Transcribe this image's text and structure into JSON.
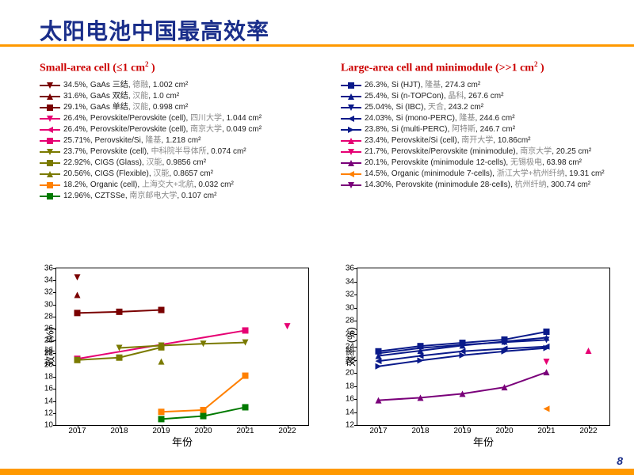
{
  "title": "太阳电池中国最高效率",
  "page_number": "8",
  "colors": {
    "title": "#1a2e8a",
    "rule": "#ff9900",
    "section_header": "#cc0000"
  },
  "panels": {
    "left": {
      "section_title_html": "Small-area cell (≤1 cm<sup>2</sup> )",
      "chart": {
        "ylabel": "效率 (%)",
        "xlabel": "年份",
        "ylim": [
          10,
          36
        ],
        "ytick_step": 2,
        "xlim": [
          2016.5,
          2022.5
        ],
        "xticks": [
          2017,
          2018,
          2019,
          2020,
          2021,
          2022
        ]
      },
      "series": [
        {
          "color": "#7a0000",
          "marker": "tri-down",
          "label": "34.5%, GaAs 三结, ",
          "grey": "德融",
          "tail": ", 1.002 cm²",
          "pts": [
            [
              2017,
              34.5
            ]
          ]
        },
        {
          "color": "#7a0000",
          "marker": "tri-up",
          "label": "31.6%, GaAs 双结, ",
          "grey": "汉能",
          "tail": ", 1.0 cm²",
          "pts": [
            [
              2017,
              31.6
            ]
          ]
        },
        {
          "color": "#7a0000",
          "marker": "square",
          "label": "29.1%, GaAs 单结, ",
          "grey": "汉能",
          "tail": ", 0.998 cm²",
          "pts": [
            [
              2017,
              28.6
            ],
            [
              2018,
              28.8
            ],
            [
              2019,
              29.1
            ]
          ]
        },
        {
          "color": "#e60073",
          "marker": "tri-down",
          "label": "26.4%, Perovskite/Perovskite (cell), ",
          "grey": "四川大学",
          "tail": ", 1.044 cm²",
          "pts": [
            [
              2022,
              26.4
            ]
          ]
        },
        {
          "color": "#e60073",
          "marker": "tri-left",
          "label": "26.4%, Perovskite/Perovskite (cell), ",
          "grey": "南京大学",
          "tail": ", 0.049 cm²",
          "pts": []
        },
        {
          "color": "#e60073",
          "marker": "square",
          "label": "25.71%, Perovskite/Si, ",
          "grey": "隆基",
          "tail": ", 1.218 cm²",
          "pts": [
            [
              2017,
              21.0
            ],
            [
              2021,
              25.7
            ]
          ]
        },
        {
          "color": "#7a7a00",
          "marker": "tri-down",
          "label": "23.7%, Perovskite (cell), ",
          "grey": "中科院半导体所",
          "tail": ", 0.074 cm²",
          "pts": [
            [
              2018,
              22.8
            ],
            [
              2019,
              23.2
            ],
            [
              2020,
              23.5
            ],
            [
              2021,
              23.7
            ]
          ]
        },
        {
          "color": "#7a7a00",
          "marker": "square",
          "label": "22.92%, CIGS (Glass), ",
          "grey": "汉能",
          "tail": ", 0.9856 cm²",
          "pts": [
            [
              2017,
              20.8
            ],
            [
              2018,
              21.2
            ],
            [
              2019,
              22.9
            ]
          ]
        },
        {
          "color": "#7a7a00",
          "marker": "tri-up",
          "label": "20.56%, CIGS (Flexible), ",
          "grey": "汉能",
          "tail": ", 0.8657 cm²",
          "pts": [
            [
              2019,
              20.56
            ]
          ]
        },
        {
          "color": "#ff8000",
          "marker": "square",
          "label": "18.2%, Organic (cell), ",
          "grey": "上海交大+北航",
          "tail": ", 0.032 cm²",
          "pts": [
            [
              2019,
              12.2
            ],
            [
              2020,
              12.5
            ],
            [
              2021,
              18.2
            ]
          ]
        },
        {
          "color": "#007a00",
          "marker": "square",
          "label": "12.96%, CZTSSe, ",
          "grey": "南京邮电大学",
          "tail": ", 0.107 cm²",
          "pts": [
            [
              2019,
              11.0
            ],
            [
              2020,
              11.5
            ],
            [
              2021,
              12.96
            ]
          ]
        }
      ]
    },
    "right": {
      "section_title_html": "Large-area cell and minimodule (>>1 cm<sup>2</sup> )",
      "chart": {
        "ylabel": "效率 (%)",
        "xlabel": "年份",
        "ylim": [
          12,
          36
        ],
        "ytick_step": 2,
        "xlim": [
          2016.5,
          2022.5
        ],
        "xticks": [
          2017,
          2018,
          2019,
          2020,
          2021,
          2022
        ]
      },
      "series": [
        {
          "color": "#0a1a8a",
          "marker": "square",
          "label": "26.3%, Si (HJT), ",
          "grey": "隆基",
          "tail": ", 274.3 cm²",
          "pts": [
            [
              2017,
              23.3
            ],
            [
              2018,
              24.1
            ],
            [
              2019,
              24.6
            ],
            [
              2020,
              25.1
            ],
            [
              2021,
              26.3
            ]
          ]
        },
        {
          "color": "#0a1a8a",
          "marker": "tri-up",
          "label": "25.4%, Si (n-TOPCon), ",
          "grey": "晶科",
          "tail": ", 267.6 cm²",
          "pts": [
            [
              2017,
              22.6
            ],
            [
              2018,
              23.4
            ],
            [
              2019,
              24.2
            ],
            [
              2020,
              24.8
            ],
            [
              2021,
              25.4
            ]
          ]
        },
        {
          "color": "#0a1a8a",
          "marker": "tri-down",
          "label": "25.04%, Si (IBC), ",
          "grey": "天合",
          "tail": ", 243.2 cm²",
          "pts": [
            [
              2017,
              23.0
            ],
            [
              2018,
              23.8
            ],
            [
              2019,
              24.3
            ],
            [
              2020,
              24.7
            ],
            [
              2021,
              25.04
            ]
          ]
        },
        {
          "color": "#0a1a8a",
          "marker": "tri-left",
          "label": "24.03%, Si (mono-PERC), ",
          "grey": "隆基",
          "tail": ", 244.6 cm²",
          "pts": [
            [
              2017,
              21.8
            ],
            [
              2018,
              22.6
            ],
            [
              2019,
              23.3
            ],
            [
              2020,
              23.7
            ],
            [
              2021,
              24.03
            ]
          ]
        },
        {
          "color": "#0a1a8a",
          "marker": "tri-right",
          "label": "23.8%, Si (multi-PERC), ",
          "grey": "阿特斯",
          "tail": ", 246.7 cm²",
          "pts": [
            [
              2017,
              21.0
            ],
            [
              2018,
              21.9
            ],
            [
              2019,
              22.7
            ],
            [
              2020,
              23.3
            ],
            [
              2021,
              23.8
            ]
          ]
        },
        {
          "color": "#e60073",
          "marker": "tri-up",
          "label": "23.4%, Perovskite/Si (cell), ",
          "grey": "南开大学",
          "tail": ", 10.86cm²",
          "pts": [
            [
              2022,
              23.4
            ]
          ]
        },
        {
          "color": "#e60073",
          "marker": "tri-down",
          "label": "21.7%, Perovskite/Perovskite (minimodule), ",
          "grey": "南京大学",
          "tail": ", 20.25 cm²",
          "pts": [
            [
              2021,
              21.7
            ]
          ]
        },
        {
          "color": "#7a007a",
          "marker": "tri-up",
          "label": "20.1%, Perovskite (minimodule 12-cells), ",
          "grey": "无锡极电",
          "tail": ", 63.98 cm²",
          "pts": [
            [
              2017,
              15.8
            ],
            [
              2018,
              16.2
            ],
            [
              2019,
              16.8
            ],
            [
              2020,
              17.8
            ],
            [
              2021,
              20.1
            ]
          ]
        },
        {
          "color": "#ff8000",
          "marker": "tri-left",
          "label": "14.5%, Organic (minimodule 7-cells), ",
          "grey": "浙江大学+杭州纤纳",
          "tail": ", 19.31 cm²",
          "pts": [
            [
              2021,
              14.5
            ]
          ]
        },
        {
          "color": "#7a007a",
          "marker": "tri-down",
          "label": "14.30%, Perovskite (minimodule 28-cells), ",
          "grey": "杭州纤纳",
          "tail": ", 300.74 cm²",
          "pts": []
        }
      ]
    }
  }
}
